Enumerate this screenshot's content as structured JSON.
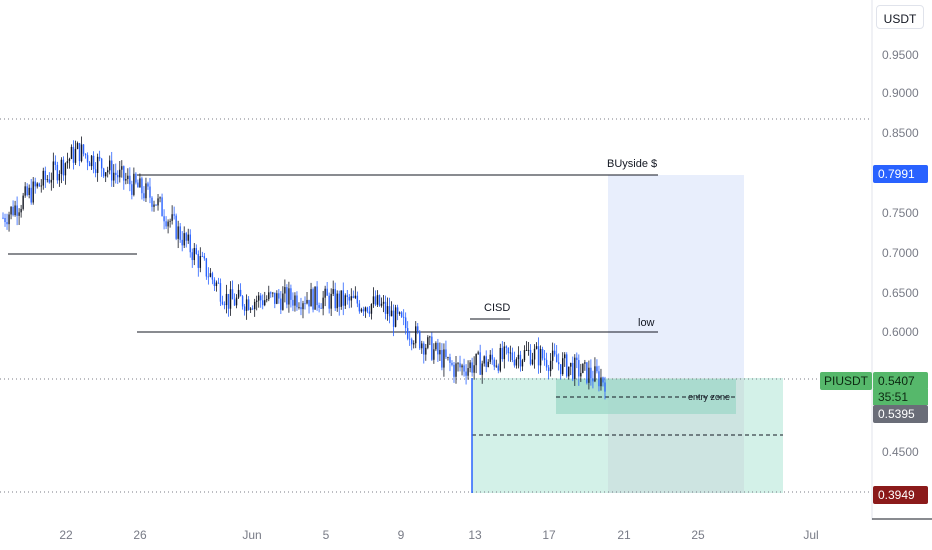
{
  "currency_button": "USDT",
  "price_axis": {
    "ticks": [
      "0.9500",
      "0.9000",
      "0.8500",
      "0.7500",
      "0.7000",
      "0.6500",
      "0.6000",
      "0.4500"
    ],
    "tick_values": [
      0.95,
      0.9,
      0.85,
      0.75,
      0.7,
      0.65,
      0.6,
      0.45
    ]
  },
  "time_axis": {
    "ticks": [
      "22",
      "26",
      "Jun",
      "5",
      "9",
      "13",
      "17",
      "21",
      "25",
      "Jul"
    ]
  },
  "badges": {
    "target_price": "0.7991",
    "symbol": "PIUSDT",
    "last_price": "0.5407",
    "countdown": "35:51",
    "entry_price": "0.5395",
    "stop_price": "0.3949"
  },
  "annotations": {
    "buyside": "BUyside $",
    "cisd": "CISD",
    "low": "low",
    "entry_zone": "entry zone"
  },
  "colors": {
    "candle_up": "#131722",
    "candle_down": "#2962ff",
    "target_zone": "#e8eefc",
    "profit_zone": "#d3f1e8",
    "entry_zone": "#9ed8c8",
    "accent_blue": "#2962ff",
    "last_green": "#56b86b",
    "stop_red": "#8b1a1a"
  },
  "chart_data": {
    "type": "candlestick",
    "symbol": "PIUSDT",
    "ylim": [
      0.37,
      0.99
    ],
    "x": [
      "May 18",
      "May 22",
      "May 26",
      "Jun 1",
      "Jun 5",
      "Jun 9",
      "Jun 13",
      "Jun 17",
      "Jun 20"
    ],
    "close": [
      0.745,
      0.83,
      0.77,
      0.64,
      0.645,
      0.635,
      0.555,
      0.575,
      0.5407
    ],
    "levels": {
      "buyside": 0.7991,
      "early_low": 0.6975,
      "low": 0.6,
      "last": 0.5407,
      "entry": 0.5395,
      "stop": 0.3949,
      "top_dotted": 0.8675,
      "mid_dashed": 0.47
    }
  }
}
